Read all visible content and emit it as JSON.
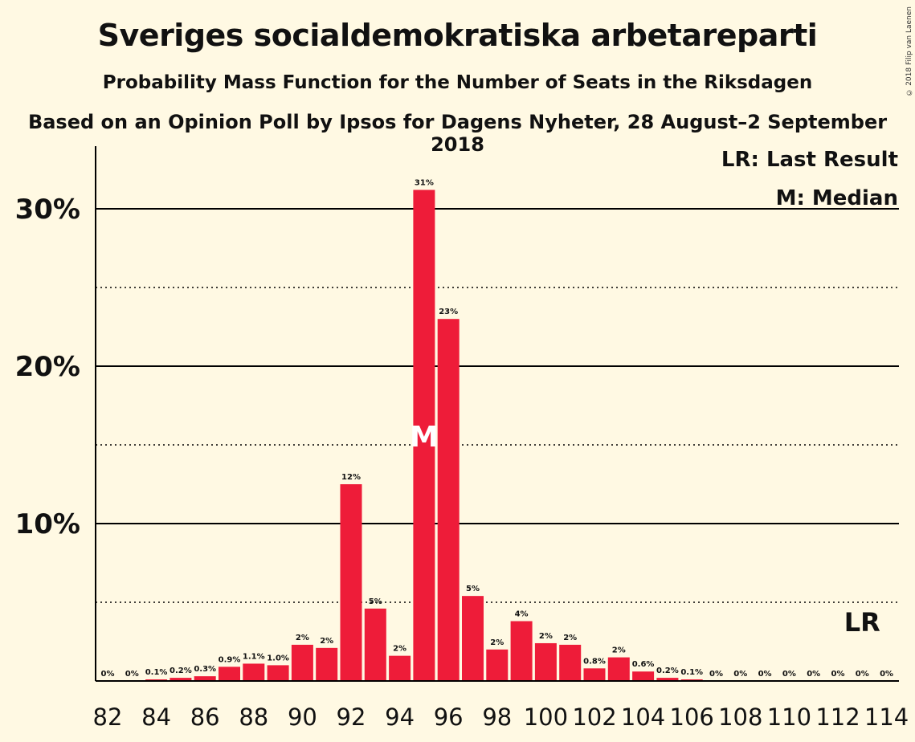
{
  "header": {
    "title": "Sveriges socialdemokratiska arbetareparti",
    "subtitle": "Probability Mass Function for the Number of Seats in the Riksdagen",
    "source": "Based on an Opinion Poll by Ipsos for Dagens Nyheter, 28 August–2 September 2018",
    "copyright": "© 2018 Filip van Laenen"
  },
  "legend": {
    "lr": "LR: Last Result",
    "median": "M: Median"
  },
  "colors": {
    "bar": "#EE1C39",
    "background": "#FFF9E3"
  },
  "chart_data": {
    "type": "bar",
    "x": [
      82,
      83,
      84,
      85,
      86,
      87,
      88,
      89,
      90,
      91,
      92,
      93,
      94,
      95,
      96,
      97,
      98,
      99,
      100,
      101,
      102,
      103,
      104,
      105,
      106,
      107,
      108,
      109,
      110,
      111,
      112,
      113,
      114
    ],
    "values": [
      0,
      0,
      0.1,
      0.2,
      0.3,
      0.9,
      1.1,
      1.0,
      2.3,
      2.1,
      12.5,
      4.6,
      1.6,
      31.2,
      23.0,
      5.4,
      2.0,
      3.8,
      2.4,
      2.3,
      0.8,
      1.5,
      0.6,
      0.2,
      0.1,
      0,
      0,
      0,
      0,
      0,
      0,
      0,
      0
    ],
    "labels": [
      "0%",
      "0%",
      "0.1%",
      "0.2%",
      "0.3%",
      "0.9%",
      "1.1%",
      "1.0%",
      "2%",
      "2%",
      "12%",
      "5%",
      "2%",
      "31%",
      "23%",
      "5%",
      "2%",
      "4%",
      "2%",
      "2%",
      "0.8%",
      "2%",
      "0.6%",
      "0.2%",
      "0.1%",
      "0%",
      "0%",
      "0%",
      "0%",
      "0%",
      "0%",
      "0%",
      "0%"
    ],
    "x_tick_labels": [
      "82",
      "84",
      "86",
      "88",
      "90",
      "92",
      "94",
      "96",
      "98",
      "100",
      "102",
      "104",
      "106",
      "108",
      "110",
      "112",
      "114"
    ],
    "y_tick_labels": [
      "10%",
      "20%",
      "30%"
    ],
    "y_ticks": [
      10,
      20,
      30
    ],
    "y_minor_ticks": [
      5,
      15,
      25
    ],
    "ylim": [
      0,
      34
    ],
    "median_seat": 95,
    "median_marker": "M",
    "last_result_seat": 113,
    "last_result_marker": "LR"
  }
}
